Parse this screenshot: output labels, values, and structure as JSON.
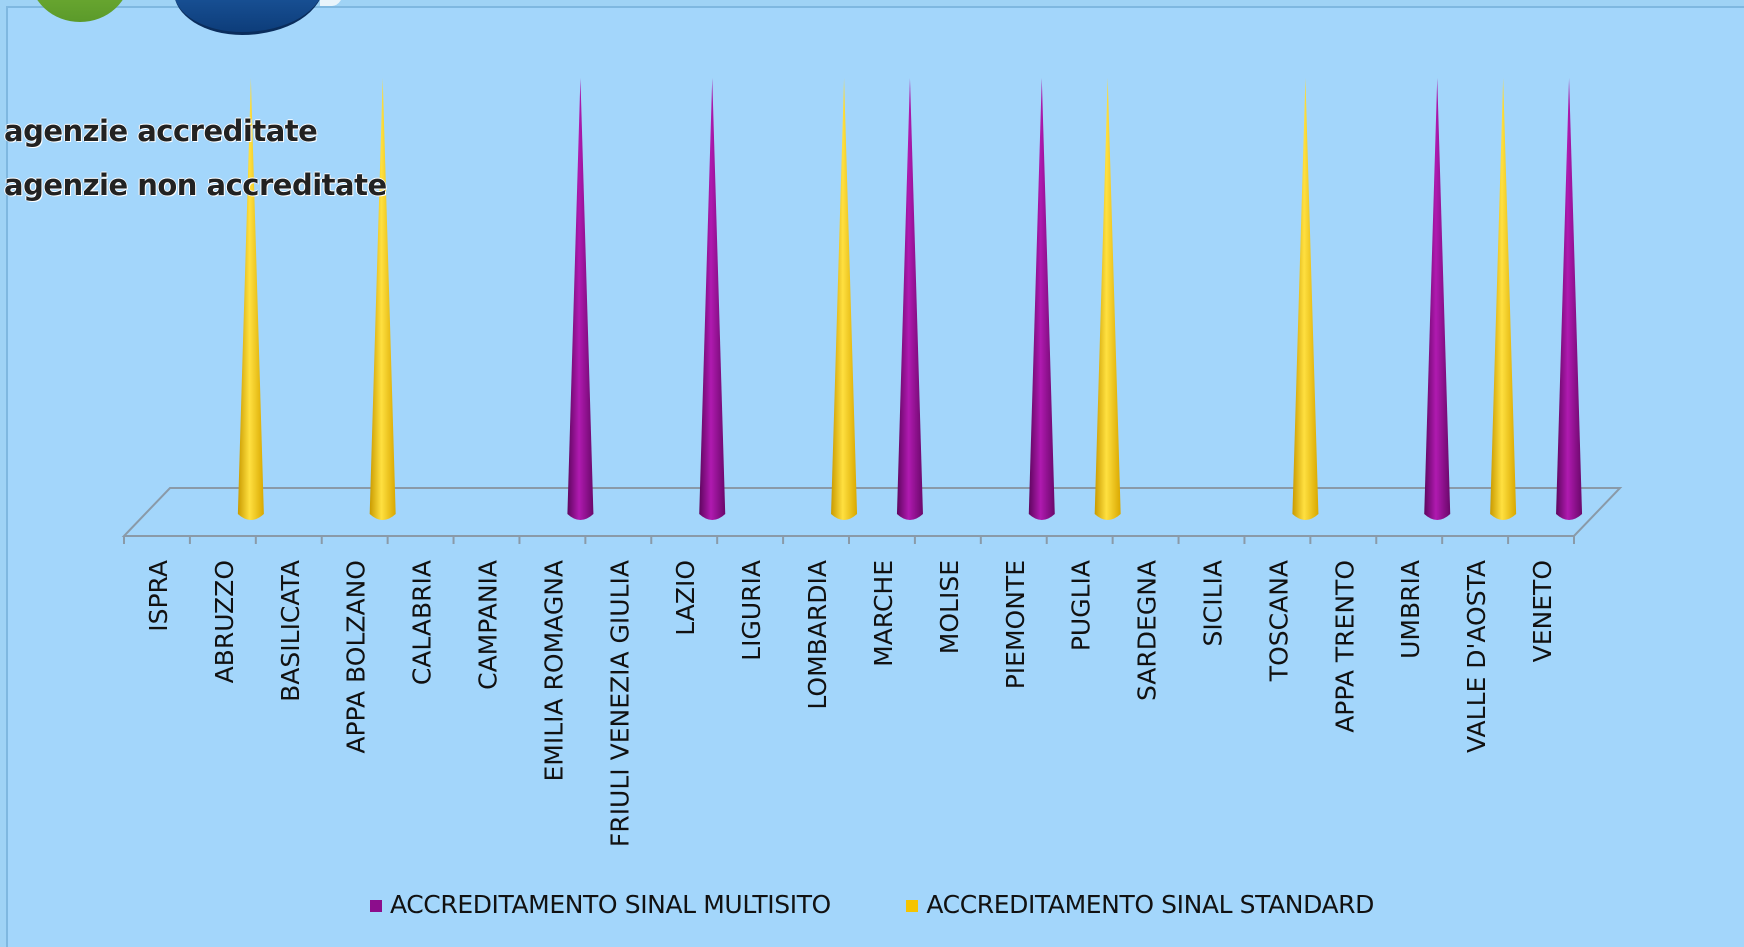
{
  "chart_data": {
    "type": "bar",
    "categories": [
      "ISPRA",
      "ABRUZZO",
      "BASILICATA",
      "APPA BOLZANO",
      "CALABRIA",
      "CAMPANIA",
      "EMILIA ROMAGNA",
      "FRIULI VENEZIA GIULIA",
      "LAZIO",
      "LIGURIA",
      "LOMBARDIA",
      "MARCHE",
      "MOLISE",
      "PIEMONTE",
      "PUGLIA",
      "SARDEGNA",
      "SICILIA",
      "TOSCANA",
      "APPA TRENTO",
      "UMBRIA",
      "VALLE D'AOSTA",
      "VENETO"
    ],
    "series": [
      {
        "name": "ACCREDITAMENTO SINAL MULTISITO",
        "color": "#8c0d8c",
        "values": [
          0,
          0,
          0,
          0,
          0,
          0,
          1,
          0,
          1,
          0,
          0,
          1,
          0,
          1,
          0,
          0,
          0,
          0,
          0,
          1,
          0,
          1
        ]
      },
      {
        "name": "ACCREDITAMENTO SINAL STANDARD",
        "color": "#f5c400",
        "values": [
          0,
          1,
          0,
          1,
          0,
          0,
          0,
          0,
          0,
          0,
          1,
          0,
          0,
          0,
          1,
          0,
          0,
          1,
          0,
          0,
          1,
          0
        ]
      }
    ],
    "legend_position": "bottom",
    "grid": false
  },
  "notes": {
    "line1": "agenzie accreditate",
    "line2": "agenzie non  accreditate"
  }
}
